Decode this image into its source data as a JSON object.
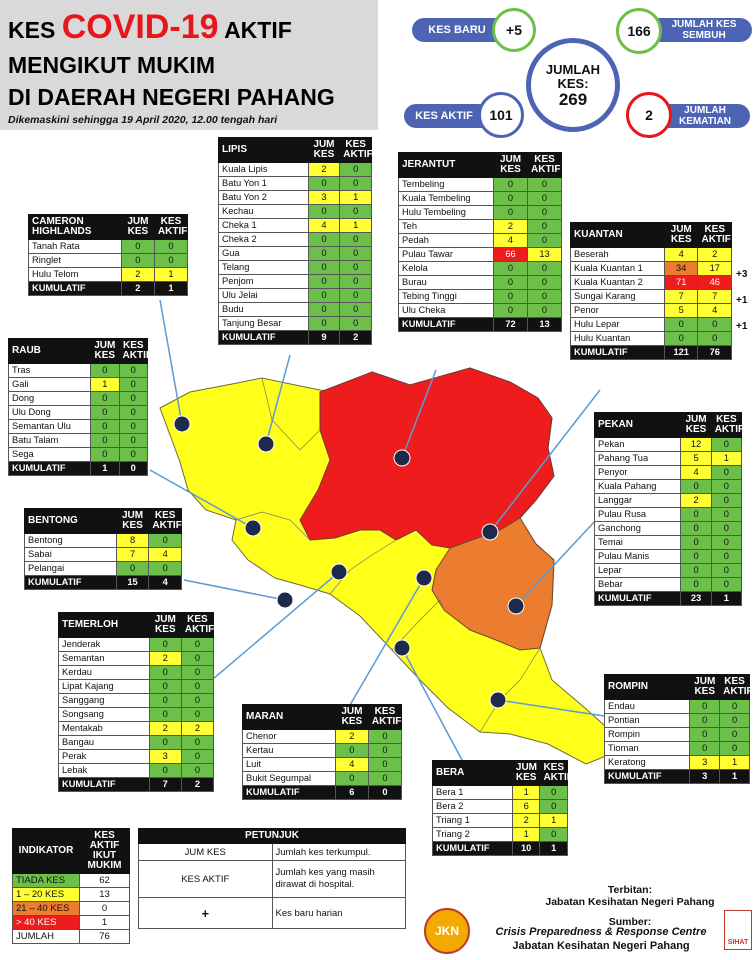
{
  "header": {
    "line1_pre": "KES",
    "line1_covid": "COVID-19",
    "line1_post": "AKTIF",
    "line2": "MENGIKUT MUKIM",
    "line3": "DI DAERAH NEGERI PAHANG",
    "updated": "Dikemaskini sehingga 19 April 2020, 12.00 tengah hari"
  },
  "summary": {
    "kes_baru_label": "KES BARU",
    "kes_baru_value": "+5",
    "sembuh_label": "JUMLAH KES SEMBUH",
    "sembuh_value": "166",
    "jumlah_label": "JUMLAH KES:",
    "jumlah_value": "269",
    "aktif_label": "KES AKTIF",
    "aktif_value": "101",
    "kematian_label": "JUMLAH KEMATIAN",
    "kematian_value": "2"
  },
  "colors": {
    "green": "#6cc04a",
    "yellow": "#ffff33",
    "orange": "#ec7c30",
    "red": "#ee1c1c",
    "header_black": "#111111",
    "banner_blue": "#4d64b5"
  },
  "districts": {
    "cameron": {
      "name": "CAMERON HIGHLANDS",
      "col1": "JUM KES",
      "col2": "KES AKTIF",
      "rows": [
        [
          "Tanah Rata",
          "0",
          "0"
        ],
        [
          "Ringlet",
          "0",
          "0"
        ],
        [
          "Hulu Telom",
          "2",
          "1"
        ]
      ],
      "cum_label": "KUMULATIF",
      "cum1": "2",
      "cum2": "1"
    },
    "lipis": {
      "name": "LIPIS",
      "col1": "JUM KES",
      "col2": "KES AKTIF",
      "rows": [
        [
          "Kuala Lipis",
          "2",
          "0"
        ],
        [
          "Batu Yon 1",
          "0",
          "0"
        ],
        [
          "Batu Yon 2",
          "3",
          "1"
        ],
        [
          "Kechau",
          "0",
          "0"
        ],
        [
          "Cheka 1",
          "4",
          "1"
        ],
        [
          "Cheka 2",
          "0",
          "0"
        ],
        [
          "Gua",
          "0",
          "0"
        ],
        [
          "Telang",
          "0",
          "0"
        ],
        [
          "Penjom",
          "0",
          "0"
        ],
        [
          "Ulu Jelai",
          "0",
          "0"
        ],
        [
          "Budu",
          "0",
          "0"
        ],
        [
          "Tanjung Besar",
          "0",
          "0"
        ]
      ],
      "cum_label": "KUMULATIF",
      "cum1": "9",
      "cum2": "2"
    },
    "jerantut": {
      "name": "JERANTUT",
      "col1": "JUM KES",
      "col2": "KES AKTIF",
      "rows": [
        [
          "Tembeling",
          "0",
          "0"
        ],
        [
          "Kuala Tembeling",
          "0",
          "0"
        ],
        [
          "Hulu Tembeling",
          "0",
          "0"
        ],
        [
          "Teh",
          "2",
          "0"
        ],
        [
          "Pedah",
          "4",
          "0"
        ],
        [
          "Pulau Tawar",
          "66",
          "13"
        ],
        [
          "Kelola",
          "0",
          "0"
        ],
        [
          "Burau",
          "0",
          "0"
        ],
        [
          "Tebing Tinggi",
          "0",
          "0"
        ],
        [
          "Ulu Cheka",
          "0",
          "0"
        ]
      ],
      "cum_label": "KUMULATIF",
      "cum1": "72",
      "cum2": "13"
    },
    "kuantan": {
      "name": "KUANTAN",
      "col1": "JUM KES",
      "col2": "KES AKTIF",
      "rows": [
        [
          "Beserah",
          "4",
          "2"
        ],
        [
          "Kuala Kuantan 1",
          "34",
          "17"
        ],
        [
          "Kuala Kuantan 2",
          "71",
          "46"
        ],
        [
          "Sungai Karang",
          "7",
          "7"
        ],
        [
          "Penor",
          "5",
          "4"
        ],
        [
          "Hulu Lepar",
          "0",
          "0"
        ],
        [
          "Hulu Kuantan",
          "0",
          "0"
        ]
      ],
      "plus": [
        "+3",
        "+1",
        "+1"
      ],
      "cum_label": "KUMULATIF",
      "cum1": "121",
      "cum2": "76"
    },
    "raub": {
      "name": "RAUB",
      "col1": "JUM KES",
      "col2": "KES AKTIF",
      "rows": [
        [
          "Tras",
          "0",
          "0"
        ],
        [
          "Gali",
          "1",
          "0"
        ],
        [
          "Dong",
          "0",
          "0"
        ],
        [
          "Ulu Dong",
          "0",
          "0"
        ],
        [
          "Semantan Ulu",
          "0",
          "0"
        ],
        [
          "Batu Talam",
          "0",
          "0"
        ],
        [
          "Sega",
          "0",
          "0"
        ]
      ],
      "cum_label": "KUMULATIF",
      "cum1": "1",
      "cum2": "0"
    },
    "pekan": {
      "name": "PEKAN",
      "col1": "JUM KES",
      "col2": "KES AKTIF",
      "rows": [
        [
          "Pekan",
          "12",
          "0"
        ],
        [
          "Pahang Tua",
          "5",
          "1"
        ],
        [
          "Penyor",
          "4",
          "0"
        ],
        [
          "Kuala Pahang",
          "0",
          "0"
        ],
        [
          "Langgar",
          "2",
          "0"
        ],
        [
          "Pulau Rusa",
          "0",
          "0"
        ],
        [
          "Ganchong",
          "0",
          "0"
        ],
        [
          "Temai",
          "0",
          "0"
        ],
        [
          "Pulau Manis",
          "0",
          "0"
        ],
        [
          "Lepar",
          "0",
          "0"
        ],
        [
          "Bebar",
          "0",
          "0"
        ]
      ],
      "cum_label": "KUMULATIF",
      "cum1": "23",
      "cum2": "1"
    },
    "bentong": {
      "name": "BENTONG",
      "col1": "JUM KES",
      "col2": "KES AKTIF",
      "rows": [
        [
          "Bentong",
          "8",
          "0"
        ],
        [
          "Sabai",
          "7",
          "4"
        ],
        [
          "Pelangai",
          "0",
          "0"
        ]
      ],
      "cum_label": "KUMULATIF",
      "cum1": "15",
      "cum2": "4"
    },
    "temerloh": {
      "name": "TEMERLOH",
      "col1": "JUM KES",
      "col2": "KES AKTIF",
      "rows": [
        [
          "Jenderak",
          "0",
          "0"
        ],
        [
          "Semantan",
          "2",
          "0"
        ],
        [
          "Kerdau",
          "0",
          "0"
        ],
        [
          "Lipat Kajang",
          "0",
          "0"
        ],
        [
          "Sanggang",
          "0",
          "0"
        ],
        [
          "Songsang",
          "0",
          "0"
        ],
        [
          "Mentakab",
          "2",
          "2"
        ],
        [
          "Bangau",
          "0",
          "0"
        ],
        [
          "Perak",
          "3",
          "0"
        ],
        [
          "Lebak",
          "0",
          "0"
        ]
      ],
      "cum_label": "KUMULATIF",
      "cum1": "7",
      "cum2": "2"
    },
    "maran": {
      "name": "MARAN",
      "col1": "JUM KES",
      "col2": "KES AKTIF",
      "rows": [
        [
          "Chenor",
          "2",
          "0"
        ],
        [
          "Kertau",
          "0",
          "0"
        ],
        [
          "Luit",
          "4",
          "0"
        ],
        [
          "Bukit Segumpal",
          "0",
          "0"
        ]
      ],
      "cum_label": "KUMULATIF",
      "cum1": "6",
      "cum2": "0"
    },
    "rompin": {
      "name": "ROMPIN",
      "col1": "JUM KES",
      "col2": "KES AKTIF",
      "rows": [
        [
          "Endau",
          "0",
          "0"
        ],
        [
          "Pontian",
          "0",
          "0"
        ],
        [
          "Rompin",
          "0",
          "0"
        ],
        [
          "Tioman",
          "0",
          "0"
        ],
        [
          "Keratong",
          "3",
          "1"
        ]
      ],
      "cum_label": "KUMULATIF",
      "cum1": "3",
      "cum2": "1"
    },
    "bera": {
      "name": "BERA",
      "col1": "JUM KES",
      "col2": "KES AKTIF",
      "rows": [
        [
          "Bera 1",
          "1",
          "0"
        ],
        [
          "Bera 2",
          "6",
          "0"
        ],
        [
          "Triang 1",
          "2",
          "1"
        ],
        [
          "Triang 2",
          "1",
          "0"
        ]
      ],
      "cum_label": "KUMULATIF",
      "cum1": "10",
      "cum2": "1"
    }
  },
  "indicator": {
    "col1": "INDIKATOR",
    "col2": "KES AKTIF IKUT MUKIM",
    "rows": [
      [
        "TIADA KES",
        "62"
      ],
      [
        "1 – 20 KES",
        "13"
      ],
      [
        "21 – 40 KES",
        "0"
      ],
      [
        "> 40 KES",
        "1"
      ]
    ],
    "total_label": "JUMLAH",
    "total": "76"
  },
  "legend": {
    "title": "PETUNJUK",
    "rows": [
      [
        "JUM KES",
        "Jumlah kes terkumpul."
      ],
      [
        "KES AKTIF",
        "Jumlah kes yang masih dirawat di hospital."
      ],
      [
        "+",
        "Kes baru harian"
      ]
    ]
  },
  "footer": {
    "terbitan": "Terbitan:",
    "publisher": "Jabatan Kesihatan Negeri Pahang",
    "sumber": "Sumber:",
    "source1": "Crisis Preparedness  & Response Centre",
    "source2": "Jabatan Kesihatan Negeri Pahang",
    "logo_text": "JKN",
    "badge_text": "SIHAT"
  }
}
